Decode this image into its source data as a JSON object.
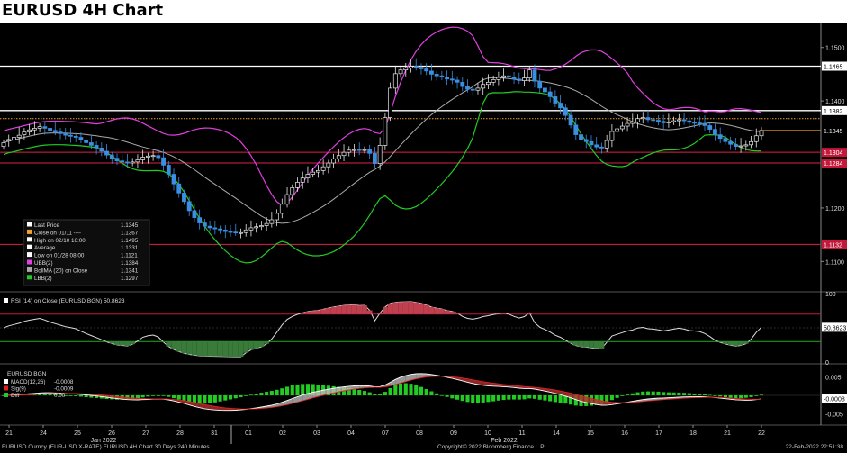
{
  "header": {
    "title": "EURUSD 4H Chart"
  },
  "footer": {
    "left": "EURUSD Curncy (EUR-USD X-RATE) EURUSD 4H Chart 30 Days 240 Minutes",
    "center": "Copyright© 2022 Bloomberg Finance L.P.",
    "right": "22-Feb-2022 22:51:38"
  },
  "legend": {
    "items": [
      {
        "label": "Last Price",
        "value": "1.1345",
        "color": "#ffffff"
      },
      {
        "label": "Close on 01/11 ----",
        "value": "1.1367",
        "color": "#f0a030"
      },
      {
        "label": "High on 02/10 16:00",
        "value": "1.1495",
        "color": "#ffffff"
      },
      {
        "label": "Average",
        "value": "1.1331",
        "color": "#ffffff"
      },
      {
        "label": "Low on 01/28 08:00",
        "value": "1.1121",
        "color": "#ffffff"
      },
      {
        "label": "UBB(2)",
        "value": "1.1384",
        "color": "#e040e0"
      },
      {
        "label": "BollMA (20) on Close",
        "value": "1.1341",
        "color": "#aaaaaa"
      },
      {
        "label": "LBB(2)",
        "value": "1.1297",
        "color": "#22cc22"
      }
    ]
  },
  "rsi": {
    "label": "RSI (14) on Close (EURUSD BGN) 50.8623",
    "value_tag": "50.8623",
    "ticks": [
      "100",
      "50",
      "0"
    ]
  },
  "macd": {
    "title": "EURUSD BGN",
    "items": [
      {
        "label": "MACD(12,26)",
        "value": "-0.0008",
        "color": "#ffffff"
      },
      {
        "label": "Sig(9)",
        "value": "-0.0009",
        "color": "#dd2222"
      },
      {
        "label": "Diff",
        "value": "0.00",
        "color": "#22cc22"
      }
    ],
    "value_tag": "-0.0008",
    "ticks": [
      "0.005",
      "-0.005"
    ]
  },
  "price_axis": {
    "ticks": [
      "1.1500",
      "1.1400",
      "1.1200",
      "1.1100"
    ],
    "tags": [
      {
        "text": "1.1465",
        "kind": "white"
      },
      {
        "text": "1.1382",
        "kind": "white"
      },
      {
        "text": "1.1345",
        "kind": "plain"
      },
      {
        "text": "1.1304",
        "kind": "red"
      },
      {
        "text": "1.1284",
        "kind": "red"
      },
      {
        "text": "1.1132",
        "kind": "red"
      }
    ]
  },
  "x_axis": {
    "days": [
      "21",
      "24",
      "25",
      "26",
      "27",
      "28",
      "31",
      "01",
      "02",
      "03",
      "04",
      "07",
      "08",
      "09",
      "10",
      "11",
      "14",
      "15",
      "16",
      "17",
      "18",
      "21",
      "22"
    ],
    "months": [
      "Jan 2022",
      "Feb 2022"
    ]
  },
  "chart_data": {
    "type": "candlestick",
    "title": "EURUSD 4H Chart",
    "ylim": [
      1.1045,
      1.1545
    ],
    "horizontal_lines": [
      {
        "value": 1.1465,
        "color": "#ffffff"
      },
      {
        "value": 1.1382,
        "color": "#ffffff"
      },
      {
        "value": 1.1367,
        "color": "#f0a030",
        "style": "dotted"
      },
      {
        "value": 1.1304,
        "color": "#dd2244"
      },
      {
        "value": 1.1284,
        "color": "#dd2244"
      },
      {
        "value": 1.1132,
        "color": "#dd2244"
      }
    ],
    "last_price": 1.1345,
    "close_values": [
      1.1322,
      1.1328,
      1.1332,
      1.1336,
      1.1342,
      1.1346,
      1.1349,
      1.1352,
      1.1349,
      1.1345,
      1.1342,
      1.1339,
      1.1336,
      1.1334,
      1.1332,
      1.1327,
      1.1322,
      1.1317,
      1.1312,
      1.1306,
      1.1299,
      1.1293,
      1.1288,
      1.1286,
      1.1284,
      1.1286,
      1.129,
      1.1295,
      1.1297,
      1.1298,
      1.1294,
      1.128,
      1.1263,
      1.1245,
      1.1228,
      1.1212,
      1.1195,
      1.1182,
      1.1172,
      1.1166,
      1.1163,
      1.1161,
      1.1159,
      1.1156,
      1.1155,
      1.1154,
      1.1154,
      1.1159,
      1.1163,
      1.1165,
      1.1167,
      1.1171,
      1.1178,
      1.119,
      1.1207,
      1.1225,
      1.1238,
      1.1248,
      1.1256,
      1.1263,
      1.1267,
      1.127,
      1.1277,
      1.1284,
      1.1292,
      1.1298,
      1.1304,
      1.1308,
      1.1309,
      1.1308,
      1.1309,
      1.1302,
      1.1283,
      1.1317,
      1.1369,
      1.1424,
      1.1451,
      1.1458,
      1.1462,
      1.1465,
      1.1463,
      1.146,
      1.1456,
      1.145,
      1.1447,
      1.1445,
      1.1441,
      1.1439,
      1.1435,
      1.1427,
      1.1422,
      1.142,
      1.1424,
      1.1431,
      1.1435,
      1.144,
      1.1444,
      1.1447,
      1.1445,
      1.1441,
      1.1438,
      1.1443,
      1.1458,
      1.1437,
      1.1424,
      1.1417,
      1.1408,
      1.1396,
      1.1387,
      1.1373,
      1.1355,
      1.1337,
      1.1328,
      1.1324,
      1.1318,
      1.1314,
      1.1312,
      1.1326,
      1.1343,
      1.1348,
      1.1353,
      1.1358,
      1.1361,
      1.1367,
      1.1369,
      1.1365,
      1.1364,
      1.1362,
      1.1359,
      1.1361,
      1.1363,
      1.1365,
      1.1363,
      1.136,
      1.1359,
      1.1358,
      1.1354,
      1.1347,
      1.1337,
      1.133,
      1.1324,
      1.1319,
      1.1315,
      1.1316,
      1.1318,
      1.1324,
      1.1335,
      1.1345
    ],
    "open_values": [
      1.1315,
      1.1325,
      1.1327,
      1.1332,
      1.1337,
      1.1342,
      1.1346,
      1.1349,
      1.1352,
      1.1349,
      1.1345,
      1.1342,
      1.1339,
      1.1336,
      1.1334,
      1.1332,
      1.1327,
      1.1322,
      1.1317,
      1.1312,
      1.1306,
      1.1299,
      1.1293,
      1.1288,
      1.1286,
      1.1284,
      1.1286,
      1.129,
      1.1295,
      1.1297,
      1.1298,
      1.1294,
      1.128,
      1.1263,
      1.1245,
      1.1228,
      1.1212,
      1.1195,
      1.1182,
      1.1172,
      1.1166,
      1.1163,
      1.1161,
      1.1159,
      1.1156,
      1.1155,
      1.1154,
      1.1154,
      1.1159,
      1.1163,
      1.1165,
      1.1167,
      1.1171,
      1.1178,
      1.119,
      1.1207,
      1.1225,
      1.1238,
      1.1248,
      1.1256,
      1.1263,
      1.1267,
      1.127,
      1.1277,
      1.1284,
      1.1292,
      1.1298,
      1.1304,
      1.1308,
      1.1309,
      1.1308,
      1.1309,
      1.1302,
      1.1283,
      1.1317,
      1.1369,
      1.1424,
      1.1451,
      1.1458,
      1.1462,
      1.1465,
      1.1463,
      1.146,
      1.1456,
      1.145,
      1.1447,
      1.1445,
      1.1441,
      1.1439,
      1.1435,
      1.1427,
      1.1422,
      1.142,
      1.1424,
      1.1431,
      1.1435,
      1.144,
      1.1444,
      1.1447,
      1.1445,
      1.1441,
      1.1438,
      1.1443,
      1.1458,
      1.1437,
      1.1424,
      1.1417,
      1.1408,
      1.1396,
      1.1387,
      1.1373,
      1.1355,
      1.1337,
      1.1328,
      1.1324,
      1.1318,
      1.1314,
      1.1312,
      1.1326,
      1.1343,
      1.1348,
      1.1353,
      1.1358,
      1.1361,
      1.1367,
      1.1369,
      1.1365,
      1.1364,
      1.1362,
      1.1359,
      1.1361,
      1.1363,
      1.1365,
      1.1363,
      1.136,
      1.1359,
      1.1358,
      1.1354,
      1.1347,
      1.1337,
      1.133,
      1.1324,
      1.1319,
      1.1315,
      1.1316,
      1.1318,
      1.1324,
      1.1335
    ],
    "bollinger": {
      "period": 20,
      "ma_last": 1.1341,
      "upper_last": 1.1384,
      "lower_last": 1.1297
    }
  }
}
